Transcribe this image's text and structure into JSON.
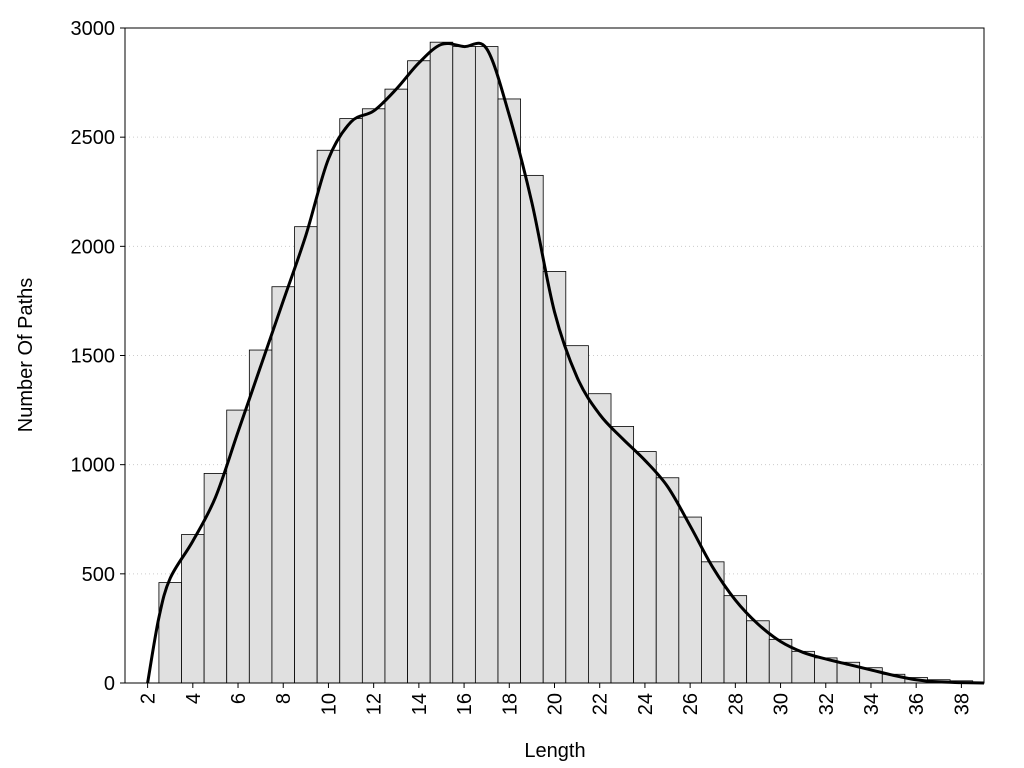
{
  "chart_data": {
    "type": "histogram",
    "x_label": "Length",
    "y_label": "Number Of Paths",
    "bins": [
      2.5,
      3.5,
      4.5,
      5.5,
      6.5,
      7.5,
      8.5,
      9.5,
      10.5,
      11.5,
      12.5,
      13.5,
      14.5,
      15.5,
      16.5,
      17.5,
      18.5,
      19.5,
      20.5,
      21.5,
      22.5,
      23.5,
      24.5,
      25.5,
      26.5,
      27.5,
      28.5,
      29.5,
      30.5,
      31.5,
      32.5,
      33.5,
      34.5,
      35.5,
      36.5,
      37.5,
      38.5
    ],
    "values": [
      460,
      680,
      960,
      1250,
      1525,
      1815,
      2090,
      2440,
      2585,
      2630,
      2720,
      2850,
      2935,
      2915,
      2915,
      2675,
      2325,
      1885,
      1545,
      1325,
      1175,
      1060,
      940,
      760,
      555,
      400,
      285,
      200,
      145,
      115,
      95,
      70,
      40,
      25,
      15,
      10
    ],
    "color": "#e0e0e0",
    "curve": {
      "color": "#000000",
      "x": [
        2,
        2.5,
        3,
        4,
        5,
        6,
        7,
        8,
        9,
        10,
        11,
        12,
        13,
        14,
        15,
        16,
        17,
        18,
        19,
        20,
        21,
        22,
        23,
        24,
        25,
        26,
        27,
        28,
        29,
        30,
        31,
        32,
        33,
        34,
        35,
        36,
        37,
        38,
        39
      ],
      "values": [
        0,
        300,
        480,
        650,
        850,
        1150,
        1450,
        1750,
        2050,
        2400,
        2570,
        2620,
        2720,
        2840,
        2925,
        2915,
        2905,
        2600,
        2200,
        1700,
        1400,
        1230,
        1120,
        1020,
        900,
        720,
        530,
        380,
        270,
        190,
        140,
        110,
        85,
        60,
        35,
        15,
        5,
        2,
        0
      ]
    },
    "xlim": [
      1,
      39
    ],
    "ylim": [
      0,
      3000
    ],
    "xticks": [
      2,
      4,
      6,
      8,
      10,
      12,
      14,
      16,
      18,
      20,
      22,
      24,
      26,
      28,
      30,
      32,
      34,
      36,
      38
    ],
    "yticks": [
      0,
      500,
      1000,
      1500,
      2000,
      2500,
      3000
    ],
    "grid": true
  }
}
